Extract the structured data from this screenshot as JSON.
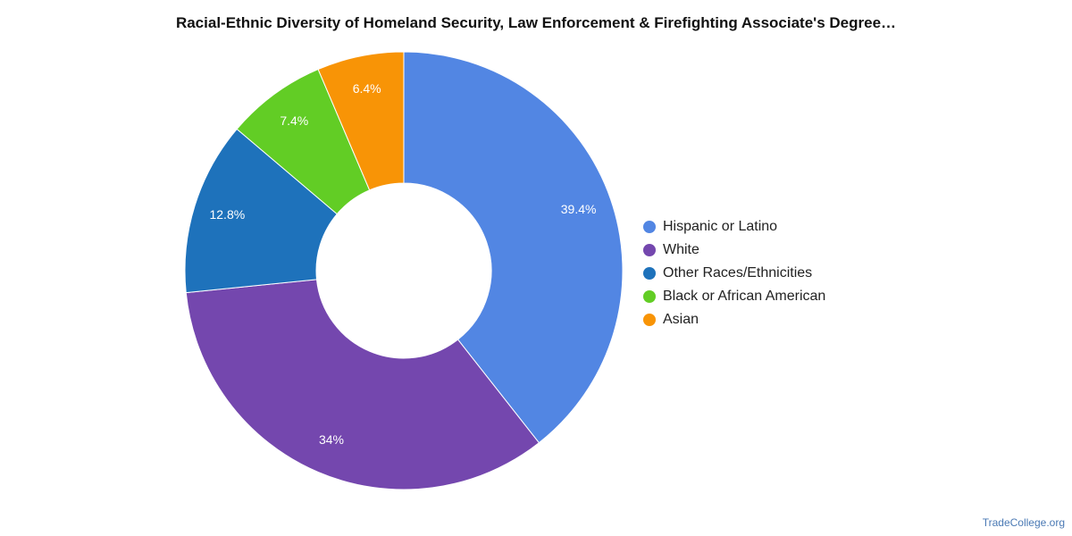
{
  "title": "Racial-Ethnic Diversity of Homeland Security, Law Enforcement & Firefighting Associate's Degree…",
  "source": "TradeCollege.org",
  "chart_data": {
    "type": "pie",
    "variant": "donut",
    "title": "Racial-Ethnic Diversity of Homeland Security, Law Enforcement & Firefighting Associate's Degree…",
    "legend_position": "right",
    "slices": [
      {
        "name": "Hispanic or Latino",
        "value": 39.4,
        "label": "39.4%",
        "color": "#5286e3"
      },
      {
        "name": "White",
        "value": 34,
        "label": "34%",
        "color": "#7447ae"
      },
      {
        "name": "Other Races/Ethnicities",
        "value": 12.8,
        "label": "12.8%",
        "color": "#1e72bb"
      },
      {
        "name": "Black or African American",
        "value": 7.4,
        "label": "7.4%",
        "color": "#62cd25"
      },
      {
        "name": "Asian",
        "value": 6.4,
        "label": "6.4%",
        "color": "#f89406"
      }
    ]
  }
}
